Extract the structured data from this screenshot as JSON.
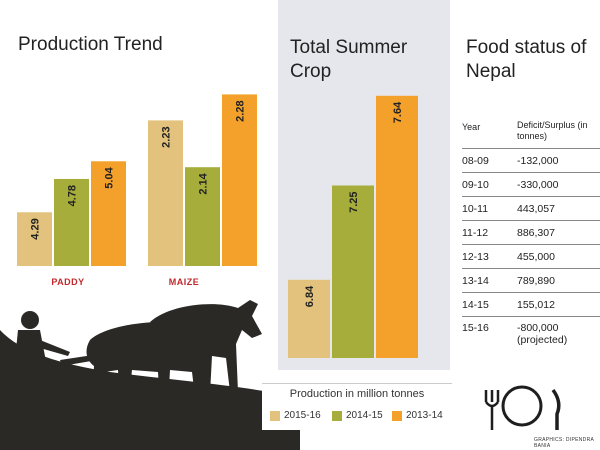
{
  "colors": {
    "s2015": "#e2c27c",
    "s2014": "#a6ad3a",
    "s2013": "#f3a12a",
    "cat": "#c0282d",
    "panel": "#e6e7ec"
  },
  "production_trend": {
    "title": "Production Trend"
  },
  "total_summer_crop": {
    "title": "Total Summer Crop"
  },
  "food_status": {
    "title": "Food status of Nepal",
    "col_year": "Year",
    "col_value": "Deficit/Surplus (in tonnes)",
    "rows": [
      {
        "year": "08-09",
        "value": "-132,000"
      },
      {
        "year": "09-10",
        "value": "-330,000"
      },
      {
        "year": "10-11",
        "value": "443,057"
      },
      {
        "year": "11-12",
        "value": "886,307"
      },
      {
        "year": "12-13",
        "value": "455,000"
      },
      {
        "year": "13-14",
        "value": "789,890"
      },
      {
        "year": "14-15",
        "value": "155,012"
      },
      {
        "year": "15-16",
        "value": "-800,000",
        "note": "(projected)"
      }
    ]
  },
  "legend": {
    "title": "Production in million tonnes",
    "items": [
      {
        "label": "2015-16",
        "color": "#e2c27c"
      },
      {
        "label": "2014-15",
        "color": "#a6ad3a"
      },
      {
        "label": "2013-14",
        "color": "#f3a12a"
      }
    ]
  },
  "credit": "GRAPHICS: DIPENDRA BANIA",
  "chart_data": [
    {
      "type": "bar",
      "title": "Production Trend",
      "categories": [
        "PADDY",
        "MAIZE"
      ],
      "series": [
        {
          "name": "2015-16",
          "values": [
            4.29,
            2.23
          ]
        },
        {
          "name": "2014-15",
          "values": [
            4.78,
            2.14
          ]
        },
        {
          "name": "2013-14",
          "values": [
            5.04,
            2.28
          ]
        }
      ],
      "value_labels": [
        [
          "4.29",
          "4.78",
          "5.04"
        ],
        [
          "2.23",
          "2.14",
          "2.28"
        ]
      ]
    },
    {
      "type": "bar",
      "title": "Total Summer Crop",
      "categories": [
        ""
      ],
      "series": [
        {
          "name": "2015-16",
          "values": [
            6.84
          ]
        },
        {
          "name": "2014-15",
          "values": [
            7.25
          ]
        },
        {
          "name": "2013-14",
          "values": [
            7.64
          ]
        }
      ],
      "value_labels": [
        "6.84",
        "7.25",
        "7.64"
      ]
    }
  ]
}
